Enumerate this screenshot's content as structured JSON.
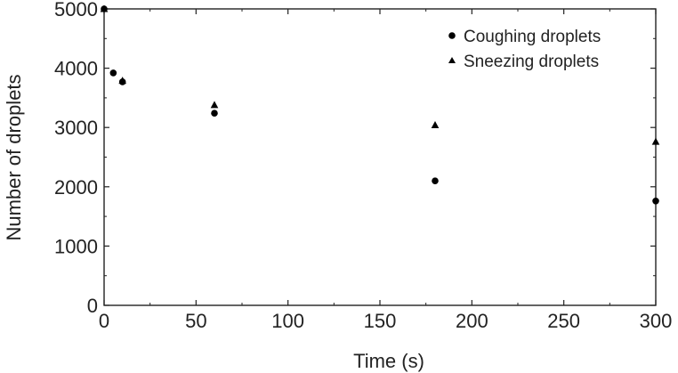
{
  "chart_data": {
    "type": "scatter",
    "xlabel": "Time (s)",
    "ylabel": "Number of droplets",
    "xlim": [
      0,
      300
    ],
    "ylim": [
      0,
      5000
    ],
    "xticks": [
      0,
      50,
      100,
      150,
      200,
      250,
      300
    ],
    "yticks": [
      0,
      1000,
      2000,
      3000,
      4000,
      5000
    ],
    "grid": false,
    "legend_position": "top-right",
    "series": [
      {
        "name": "Coughing droplets",
        "marker": "circle",
        "color": "#000000",
        "x": [
          0,
          5,
          10,
          60,
          180,
          300
        ],
        "y": [
          5000,
          3920,
          3770,
          3240,
          2100,
          1760
        ]
      },
      {
        "name": "Sneezing droplets",
        "marker": "triangle",
        "color": "#000000",
        "x": [
          0,
          10,
          60,
          180,
          300
        ],
        "y": [
          5000,
          3790,
          3380,
          3040,
          2760
        ]
      }
    ]
  }
}
